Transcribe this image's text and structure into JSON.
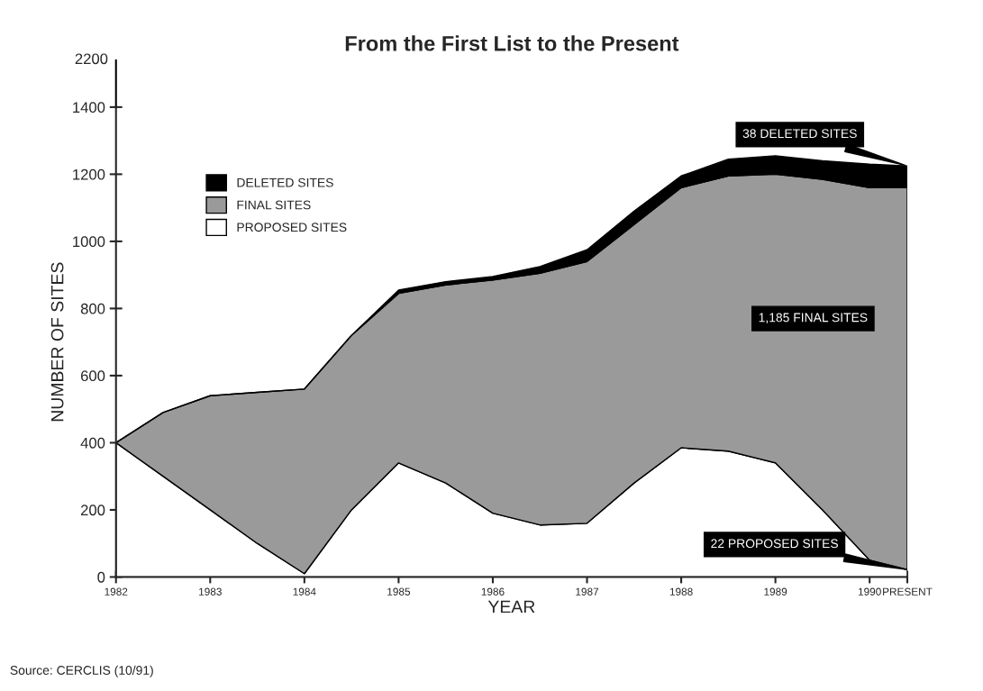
{
  "chart_data": {
    "type": "area",
    "stacked": true,
    "title": "From the First List to the Present",
    "xlabel": "YEAR",
    "ylabel": "NUMBER OF SITES",
    "x": [
      1982,
      1982.5,
      1983,
      1983.5,
      1984,
      1984.5,
      1985,
      1985.5,
      1986,
      1986.5,
      1987,
      1987.5,
      1988,
      1988.5,
      1989,
      1989.5,
      1990,
      1990.4
    ],
    "series": [
      {
        "name": "PROPOSED SITES",
        "color": "#ffffff",
        "values": [
          400,
          300,
          200,
          100,
          10,
          200,
          340,
          280,
          190,
          155,
          160,
          280,
          385,
          375,
          340,
          200,
          50,
          22
        ]
      },
      {
        "name": "FINAL SITES",
        "color": "#9a9a9a",
        "values": [
          0,
          190,
          340,
          450,
          550,
          520,
          505,
          590,
          695,
          750,
          780,
          770,
          775,
          820,
          860,
          985,
          1110,
          1138
        ]
      },
      {
        "name": "DELETED SITES",
        "color": "#000000",
        "values": [
          0,
          0,
          0,
          0,
          0,
          0,
          10,
          10,
          10,
          20,
          35,
          40,
          35,
          50,
          55,
          55,
          70,
          65
        ]
      }
    ],
    "xlim": [
      1982,
      1990.4
    ],
    "xticks": [
      1982,
      1983,
      1984,
      1985,
      1986,
      1987,
      1988,
      1989,
      1990,
      {
        "value": 1990.4,
        "label": "PRESENT"
      }
    ],
    "ylim": [
      0,
      1400
    ],
    "yticks": [
      0,
      200,
      400,
      600,
      800,
      1000,
      1200,
      1400
    ],
    "legend": "top left",
    "grid": false,
    "annotations": [
      "2200",
      "Source: CERCLIS (10/91)",
      {
        "text": "38 DELETED SITES",
        "x": 1990.4,
        "y": 1225
      },
      "1,185 FINAL SITES",
      {
        "text": "22 PROPOSED SITES",
        "x": 1990.4,
        "y": 22
      }
    ]
  }
}
